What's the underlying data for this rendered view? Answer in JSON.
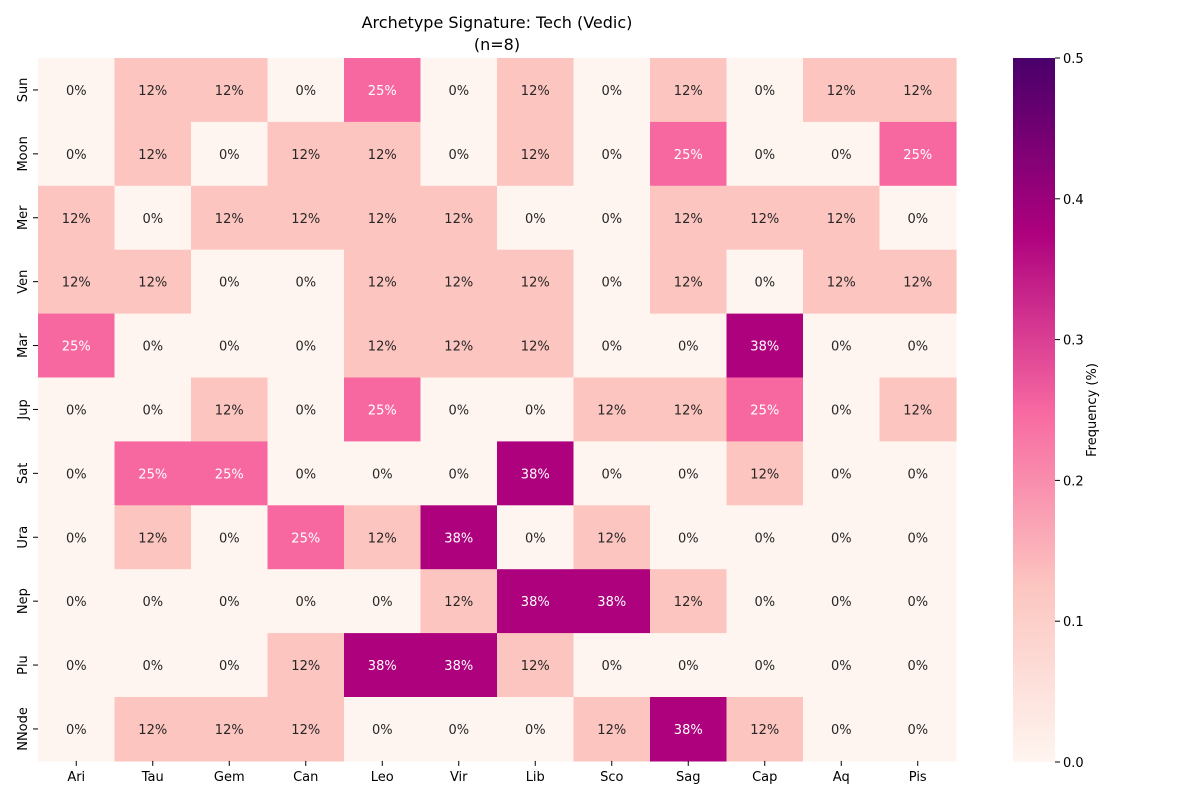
{
  "chart_data": {
    "type": "heatmap",
    "title": "Archetype Signature: Tech (Vedic)",
    "subtitle": "(n=8)",
    "xlabel": "",
    "ylabel": "",
    "x_categories": [
      "Ari",
      "Tau",
      "Gem",
      "Can",
      "Leo",
      "Vir",
      "Lib",
      "Sco",
      "Sag",
      "Cap",
      "Aq",
      "Pis"
    ],
    "y_categories": [
      "Sun",
      "Moon",
      "Mer",
      "Ven",
      "Mar",
      "Jup",
      "Sat",
      "Ura",
      "Nep",
      "Plu",
      "NNode"
    ],
    "values": [
      [
        0,
        0.125,
        0.125,
        0,
        0.25,
        0,
        0.125,
        0,
        0.125,
        0,
        0.125,
        0.125
      ],
      [
        0,
        0.125,
        0,
        0.125,
        0.125,
        0,
        0.125,
        0,
        0.25,
        0,
        0,
        0.25
      ],
      [
        0.125,
        0,
        0.125,
        0.125,
        0.125,
        0.125,
        0,
        0,
        0.125,
        0.125,
        0.125,
        0
      ],
      [
        0.125,
        0.125,
        0,
        0,
        0.125,
        0.125,
        0.125,
        0,
        0.125,
        0,
        0.125,
        0.125
      ],
      [
        0.25,
        0,
        0,
        0,
        0.125,
        0.125,
        0.125,
        0,
        0,
        0.375,
        0,
        0
      ],
      [
        0,
        0,
        0.125,
        0,
        0.25,
        0,
        0,
        0.125,
        0.125,
        0.25,
        0,
        0.125
      ],
      [
        0,
        0.25,
        0.25,
        0,
        0,
        0,
        0.375,
        0,
        0,
        0.125,
        0,
        0
      ],
      [
        0,
        0.125,
        0,
        0.25,
        0.125,
        0.375,
        0,
        0.125,
        0,
        0,
        0,
        0
      ],
      [
        0,
        0,
        0,
        0,
        0,
        0.125,
        0.375,
        0.375,
        0.125,
        0,
        0,
        0
      ],
      [
        0,
        0,
        0,
        0.125,
        0.375,
        0.375,
        0.125,
        0,
        0,
        0,
        0,
        0
      ],
      [
        0,
        0.125,
        0.125,
        0.125,
        0,
        0,
        0,
        0.125,
        0.375,
        0.125,
        0,
        0
      ]
    ],
    "annotations": [
      [
        "0%",
        "12%",
        "12%",
        "0%",
        "25%",
        "0%",
        "12%",
        "0%",
        "12%",
        "0%",
        "12%",
        "12%"
      ],
      [
        "0%",
        "12%",
        "0%",
        "12%",
        "12%",
        "0%",
        "12%",
        "0%",
        "25%",
        "0%",
        "0%",
        "25%"
      ],
      [
        "12%",
        "0%",
        "12%",
        "12%",
        "12%",
        "12%",
        "0%",
        "0%",
        "12%",
        "12%",
        "12%",
        "0%"
      ],
      [
        "12%",
        "12%",
        "0%",
        "0%",
        "12%",
        "12%",
        "12%",
        "0%",
        "12%",
        "0%",
        "12%",
        "12%"
      ],
      [
        "25%",
        "0%",
        "0%",
        "0%",
        "12%",
        "12%",
        "12%",
        "0%",
        "0%",
        "38%",
        "0%",
        "0%"
      ],
      [
        "0%",
        "0%",
        "12%",
        "0%",
        "25%",
        "0%",
        "0%",
        "12%",
        "12%",
        "25%",
        "0%",
        "12%"
      ],
      [
        "0%",
        "25%",
        "25%",
        "0%",
        "0%",
        "0%",
        "38%",
        "0%",
        "0%",
        "12%",
        "0%",
        "0%"
      ],
      [
        "0%",
        "12%",
        "0%",
        "25%",
        "12%",
        "38%",
        "0%",
        "12%",
        "0%",
        "0%",
        "0%",
        "0%"
      ],
      [
        "0%",
        "0%",
        "0%",
        "0%",
        "0%",
        "12%",
        "38%",
        "38%",
        "12%",
        "0%",
        "0%",
        "0%"
      ],
      [
        "0%",
        "0%",
        "0%",
        "12%",
        "38%",
        "38%",
        "12%",
        "0%",
        "0%",
        "0%",
        "0%",
        "0%"
      ],
      [
        "0%",
        "12%",
        "12%",
        "12%",
        "0%",
        "0%",
        "0%",
        "12%",
        "38%",
        "12%",
        "0%",
        "0%"
      ]
    ],
    "colorbar": {
      "label": "Frequency (%)",
      "range": [
        0,
        0.5
      ],
      "ticks": [
        "0.0",
        "0.1",
        "0.2",
        "0.3",
        "0.4",
        "0.5"
      ],
      "colormap": "RdPu"
    },
    "colors": {
      "c0": "#fff5f0",
      "c125": "#fcc5c0",
      "c25": "#f768a1",
      "c375": "#ae017e",
      "c50": "#49006a",
      "text_dark": "#262626",
      "text_light": "#ffffff"
    }
  }
}
